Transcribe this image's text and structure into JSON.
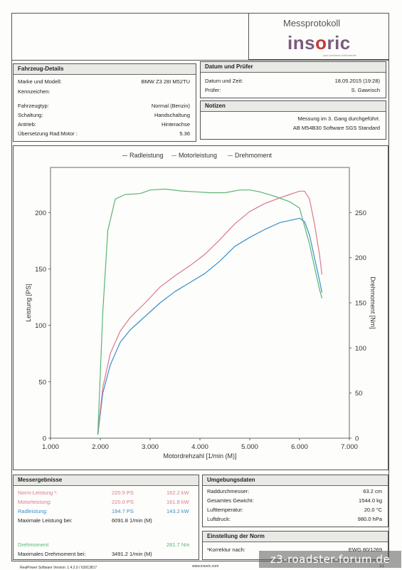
{
  "header": {
    "title": "Messprotokoll",
    "brand_left": "ins",
    "brand_accent": "o",
    "brand_right": "ric",
    "tagline": "your precision instruments"
  },
  "vehicle": {
    "heading": "Fahrzeug-Details",
    "rows": [
      {
        "label": "Marke und Modell:",
        "value": "BMW Z3 28I M52TU"
      },
      {
        "label": "Kennzeichen:",
        "value": ""
      },
      {
        "label": "Fahrzeugtyp:",
        "value": "Normal (Benzin)"
      },
      {
        "label": "Schaltung:",
        "value": "Handschaltung"
      },
      {
        "label": "Antrieb:",
        "value": "Hinterachse"
      },
      {
        "label": "Übersetzung Rad:Motor :",
        "value": "5.36"
      }
    ]
  },
  "date_tester": {
    "heading": "Datum und Prüfer",
    "rows": [
      {
        "label": "Datum und Zeit:",
        "value": "18.05.2015 (19:28)"
      },
      {
        "label": "Prüfer:",
        "value": "S. Gawrisch"
      }
    ]
  },
  "notes": {
    "heading": "Notizen",
    "lines": [
      "Messung im 3. Gang durchgeführt.",
      "AB M54B30 Software SGS Standard"
    ]
  },
  "chart_data": {
    "type": "line",
    "title": "",
    "xlabel": "Motordrehzahl [1/min (M)]",
    "ylabel": "Leistung [PS]",
    "y2label": "Drehmoment [Nm]",
    "xlim": [
      1000,
      7000
    ],
    "ylim": [
      0,
      240
    ],
    "y2lim": [
      0,
      300
    ],
    "xticks": [
      1000,
      2000,
      3000,
      4000,
      5000,
      6000,
      7000
    ],
    "xtick_labels": [
      "1.000",
      "2.000",
      "3.000",
      "4.000",
      "5.000",
      "6.000",
      "7.000"
    ],
    "yticks": [
      0,
      50,
      100,
      150,
      200
    ],
    "y2ticks": [
      0,
      50,
      100,
      150,
      200,
      250
    ],
    "grid": false,
    "legend_position": "top",
    "series": [
      {
        "name": "Radleistung",
        "color": "#3a8fcc",
        "axis": "left",
        "x": [
          1950,
          2050,
          2200,
          2400,
          2600,
          2900,
          3200,
          3500,
          3800,
          4100,
          4400,
          4700,
          5000,
          5300,
          5600,
          5800,
          6000,
          6100,
          6200,
          6300,
          6400,
          6450
        ],
        "y": [
          3,
          40,
          65,
          85,
          96,
          108,
          120,
          130,
          138,
          146,
          157,
          170,
          178,
          185,
          191,
          193,
          195,
          192,
          180,
          160,
          140,
          129
        ]
      },
      {
        "name": "Motorleistung",
        "color": "#d9798e",
        "axis": "left",
        "x": [
          1950,
          2050,
          2200,
          2400,
          2600,
          2900,
          3200,
          3500,
          3800,
          4100,
          4400,
          4700,
          5000,
          5300,
          5600,
          5800,
          6000,
          6100,
          6200,
          6300,
          6400,
          6450
        ],
        "y": [
          5,
          45,
          75,
          95,
          107,
          120,
          134,
          144,
          153,
          163,
          176,
          190,
          201,
          208,
          213,
          216,
          219,
          219,
          212,
          190,
          163,
          145
        ]
      },
      {
        "name": "Drehmoment",
        "color": "#5bb575",
        "axis": "right",
        "x": [
          1950,
          2050,
          2150,
          2300,
          2500,
          2800,
          3000,
          3300,
          3600,
          3900,
          4200,
          4500,
          4800,
          5000,
          5200,
          5500,
          5800,
          6000,
          6200,
          6400,
          6450
        ],
        "y": [
          5,
          140,
          230,
          265,
          270,
          271,
          275,
          276,
          274,
          273,
          272,
          272,
          275,
          275,
          273,
          268,
          262,
          255,
          215,
          165,
          155
        ]
      }
    ]
  },
  "results": {
    "heading": "Messergebnisse",
    "rows": [
      {
        "label": "Norm-Leistung ¹:",
        "ps": "220.5 PS",
        "kw": "162.2 kW",
        "color": "#d9798e"
      },
      {
        "label": "Motorleistung:",
        "ps": "220.0 PS",
        "kw": "161.8 kW",
        "color": "#d9798e"
      },
      {
        "label": "Radleistung:",
        "ps": "194.7 PS",
        "kw": "143.2 kW",
        "color": "#3a8fcc"
      }
    ],
    "max_power_label": "Maximale Leistung bei:",
    "max_power_value": "6091.8 1/min (M)",
    "torque_label": "Drehmoment",
    "torque_value": "281.7 Nm",
    "torque_color": "#5bb575",
    "max_torque_label": "Maximales Drehmoment bei:",
    "max_torque_value": "3491.2 1/min (M)"
  },
  "environment": {
    "heading": "Umgebungsdaten",
    "rows": [
      {
        "label": "Raddurchmesser:",
        "value": "63.2 cm"
      },
      {
        "label": "Gesamtes Gewicht:",
        "value": "1544.0 kg"
      },
      {
        "label": "Lufttemperatur:",
        "value": "20.0 °C"
      },
      {
        "label": "Luftdruck:",
        "value": "980.0 hPa"
      }
    ]
  },
  "norm": {
    "heading": "Einstellung der Norm",
    "label": "¹Korrektur nach:",
    "value": "EWG 80/1269"
  },
  "footer": {
    "software": "RealPower Software Version: 1.4.2.0 / 63913817",
    "url": "www.insoric.com",
    "page": "1/1"
  },
  "watermark": "z3-roadster-forum.de"
}
